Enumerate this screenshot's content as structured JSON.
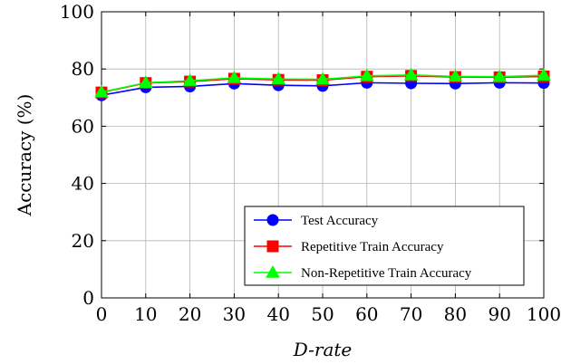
{
  "chart_data": {
    "type": "line",
    "title": "",
    "xlabel": "D-rate",
    "ylabel": "Accuracy (%)",
    "xlim": [
      0,
      100
    ],
    "ylim": [
      0,
      100
    ],
    "x_ticks": [
      0,
      10,
      20,
      30,
      40,
      50,
      60,
      70,
      80,
      90,
      100
    ],
    "y_ticks": [
      0,
      20,
      40,
      60,
      80,
      100
    ],
    "grid": true,
    "legend_position": "bottom-right",
    "x": [
      0,
      10,
      20,
      30,
      40,
      50,
      60,
      70,
      80,
      90,
      100
    ],
    "series": [
      {
        "name": "Test Accuracy",
        "color": "#0000ff",
        "marker": "circle",
        "values": [
          70.8,
          73.6,
          73.9,
          74.9,
          74.3,
          74.1,
          75.2,
          75.0,
          74.9,
          75.2,
          75.1
        ]
      },
      {
        "name": "Repetitive Train Accuracy",
        "color": "#ff0000",
        "marker": "square",
        "values": [
          71.8,
          75.1,
          75.6,
          76.6,
          76.2,
          76.1,
          77.3,
          77.6,
          77.2,
          77.1,
          77.4
        ]
      },
      {
        "name": "Non-Repetitive Train Accuracy",
        "color": "#00ff00",
        "marker": "triangle",
        "values": [
          71.9,
          75.2,
          75.9,
          76.9,
          76.5,
          76.4,
          77.6,
          77.9,
          77.4,
          77.3,
          77.8
        ]
      }
    ]
  }
}
